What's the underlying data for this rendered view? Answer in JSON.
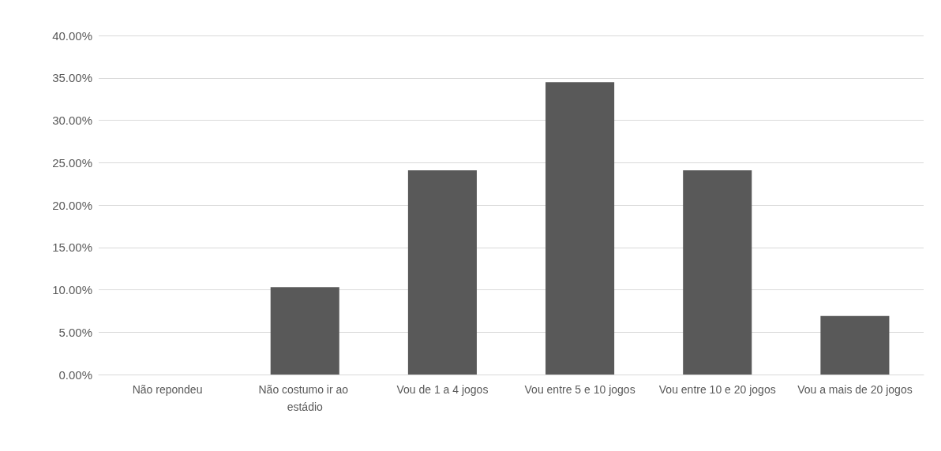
{
  "chart_data": {
    "type": "bar",
    "categories": [
      "Não repondeu",
      "Não costumo ir ao estádio",
      "Vou de 1 a 4 jogos",
      "Vou entre 5 e 10 jogos",
      "Vou entre 10 e 20 jogos",
      "Vou a mais de 20 jogos"
    ],
    "values": [
      0,
      10.3,
      24.1,
      34.5,
      24.1,
      6.9
    ],
    "color": "#595959",
    "ylim": [
      0,
      40
    ],
    "yticks": [
      {
        "value": 0,
        "label": "0.00%"
      },
      {
        "value": 5,
        "label": "5.00%"
      },
      {
        "value": 10,
        "label": "10.00%"
      },
      {
        "value": 15,
        "label": "15.00%"
      },
      {
        "value": 20,
        "label": "20.00%"
      },
      {
        "value": 25,
        "label": "25.00%"
      },
      {
        "value": 30,
        "label": "30.00%"
      },
      {
        "value": 35,
        "label": "35.00%"
      },
      {
        "value": 40,
        "label": "40.00%"
      }
    ],
    "grid": "y"
  }
}
